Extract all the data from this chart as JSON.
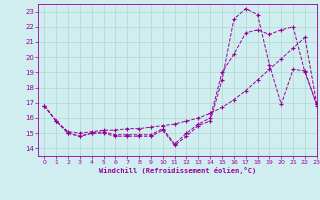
{
  "xlabel": "Windchill (Refroidissement éolien,°C)",
  "xlim": [
    -0.5,
    23
  ],
  "ylim": [
    13.5,
    23.5
  ],
  "xticks": [
    0,
    1,
    2,
    3,
    4,
    5,
    6,
    7,
    8,
    9,
    10,
    11,
    12,
    13,
    14,
    15,
    16,
    17,
    18,
    19,
    20,
    21,
    22,
    23
  ],
  "yticks": [
    14,
    15,
    16,
    17,
    18,
    19,
    20,
    21,
    22,
    23
  ],
  "bg_color": "#d0eef0",
  "line_color": "#990099",
  "grid_color": "#b0d8d0",
  "curve1_x": [
    0,
    1,
    2,
    3,
    4,
    5,
    6,
    7,
    8,
    9,
    10,
    11,
    12,
    13,
    14,
    15,
    16,
    17,
    18,
    19,
    20,
    21,
    22,
    23
  ],
  "curve1_y": [
    16.8,
    15.8,
    15.0,
    14.8,
    15.0,
    15.0,
    14.8,
    14.8,
    14.8,
    14.8,
    15.2,
    14.2,
    14.8,
    15.5,
    15.8,
    18.5,
    22.5,
    23.2,
    22.8,
    19.5,
    16.9,
    19.2,
    19.1,
    16.8
  ],
  "curve2_x": [
    0,
    1,
    2,
    3,
    4,
    5,
    6,
    7,
    8,
    9,
    10,
    11,
    12,
    13,
    14,
    15,
    16,
    17,
    18,
    19,
    20,
    21,
    22,
    23
  ],
  "curve2_y": [
    16.8,
    15.8,
    15.1,
    15.0,
    15.1,
    15.2,
    15.2,
    15.3,
    15.3,
    15.4,
    15.5,
    15.6,
    15.8,
    16.0,
    16.3,
    16.7,
    17.2,
    17.8,
    18.5,
    19.2,
    19.9,
    20.6,
    21.3,
    16.9
  ],
  "curve3_x": [
    0,
    1,
    2,
    3,
    4,
    5,
    6,
    7,
    8,
    9,
    10,
    11,
    12,
    13,
    14,
    15,
    16,
    17,
    18,
    19,
    20,
    21,
    22,
    23
  ],
  "curve3_y": [
    16.8,
    15.8,
    15.0,
    14.8,
    15.0,
    15.1,
    14.9,
    14.9,
    14.9,
    14.9,
    15.3,
    14.3,
    15.0,
    15.6,
    16.0,
    19.0,
    20.2,
    21.6,
    21.8,
    21.5,
    21.8,
    22.0,
    19.0,
    16.9
  ]
}
